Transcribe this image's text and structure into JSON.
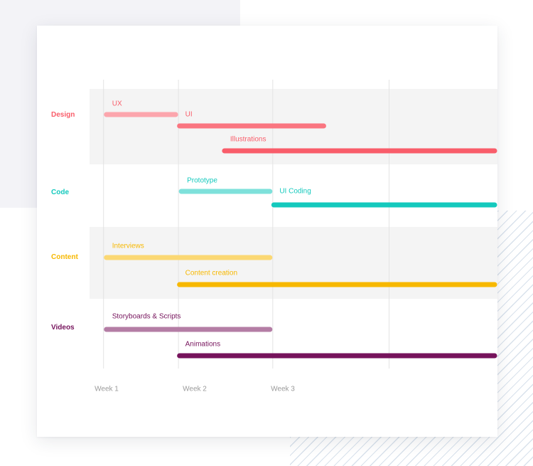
{
  "colors": {
    "design": "#f95d6a",
    "code": "#14c9bd",
    "content": "#f7b800",
    "videos": "#76135c",
    "band": "#f4f4f4",
    "grid": "#e3e3e3",
    "week_label": "#9a9a9a"
  },
  "chart_data": {
    "type": "gantt",
    "x_axis": {
      "unit": "week",
      "range": [
        0.5,
        5.0
      ],
      "tick_labels": [
        {
          "label": "Week 1",
          "week": 1
        },
        {
          "label": "Week 2",
          "week": 2
        },
        {
          "label": "Week 3",
          "week": 3
        }
      ]
    },
    "gridlines_at_week": [
      0.53,
      1.38,
      2.45,
      3.77
    ],
    "groups": [
      {
        "name": "Design",
        "color": "#f95d6a",
        "shaded": true,
        "tasks": [
          {
            "label": "UX",
            "start": 0.53,
            "end": 1.38,
            "shade": "light"
          },
          {
            "label": "UI",
            "start": 1.36,
            "end": 3.06,
            "shade": "mid"
          },
          {
            "label": "Illustrations",
            "start": 1.87,
            "end": 5.0,
            "shade": "full"
          }
        ]
      },
      {
        "name": "Code",
        "color": "#14c9bd",
        "shaded": false,
        "tasks": [
          {
            "label": "Prototype",
            "start": 1.38,
            "end": 2.45,
            "shade": "light"
          },
          {
            "label": "UI Coding",
            "start": 2.43,
            "end": 5.0,
            "shade": "full"
          }
        ]
      },
      {
        "name": "Content",
        "color": "#f7b800",
        "shaded": true,
        "tasks": [
          {
            "label": "Interviews",
            "start": 0.53,
            "end": 2.45,
            "shade": "light"
          },
          {
            "label": "Content creation",
            "start": 1.36,
            "end": 5.0,
            "shade": "full"
          }
        ]
      },
      {
        "name": "Videos",
        "color": "#76135c",
        "shaded": false,
        "tasks": [
          {
            "label": "Storyboards & Scripts",
            "start": 0.53,
            "end": 2.45,
            "shade": "light"
          },
          {
            "label": "Animations",
            "start": 1.36,
            "end": 5.0,
            "shade": "full"
          }
        ]
      }
    ]
  }
}
